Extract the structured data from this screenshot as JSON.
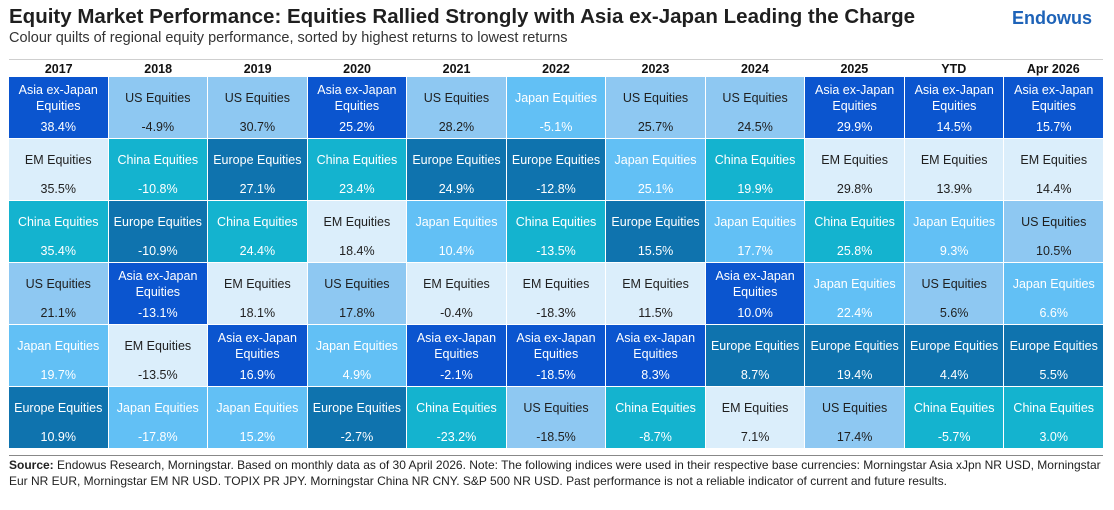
{
  "header": {
    "title": "Equity Market Performance: Equities Rallied Strongly with Asia ex-Japan Leading the Charge",
    "subtitle": "Colour quilts of regional equity performance, sorted by highest returns to lowest returns",
    "brand": "Endowus"
  },
  "colors": {
    "Asia ex-Japan Equities": "#0b55cf",
    "US Equities": "#8ec8f2",
    "EM Equities": "#dbeefb",
    "China Equities": "#14b3cf",
    "Europe Equities": "#0f73ae",
    "Japan Equities": "#62c0f5"
  },
  "text_colors": {
    "Asia ex-Japan Equities": "#ffffff",
    "US Equities": "#1f1f1f",
    "EM Equities": "#1f1f1f",
    "China Equities": "#ffffff",
    "Europe Equities": "#ffffff",
    "Japan Equities": "#ffffff"
  },
  "chart_data": {
    "type": "table",
    "columns": [
      "2017",
      "2018",
      "2019",
      "2020",
      "2021",
      "2022",
      "2023",
      "2024",
      "2025",
      "YTD",
      "Apr 2026"
    ],
    "cells": [
      [
        {
          "name": "Asia ex-Japan Equities",
          "value": "38.4%"
        },
        {
          "name": "EM Equities",
          "value": "35.5%"
        },
        {
          "name": "China Equities",
          "value": "35.4%"
        },
        {
          "name": "US Equities",
          "value": "21.1%"
        },
        {
          "name": "Japan Equities",
          "value": "19.7%"
        },
        {
          "name": "Europe Equities",
          "value": "10.9%"
        }
      ],
      [
        {
          "name": "US Equities",
          "value": "-4.9%"
        },
        {
          "name": "China Equities",
          "value": "-10.8%"
        },
        {
          "name": "Europe Equities",
          "value": "-10.9%"
        },
        {
          "name": "Asia ex-Japan Equities",
          "value": "-13.1%"
        },
        {
          "name": "EM Equities",
          "value": "-13.5%"
        },
        {
          "name": "Japan Equities",
          "value": "-17.8%"
        }
      ],
      [
        {
          "name": "US Equities",
          "value": "30.7%"
        },
        {
          "name": "Europe Equities",
          "value": "27.1%"
        },
        {
          "name": "China Equities",
          "value": "24.4%"
        },
        {
          "name": "EM Equities",
          "value": "18.1%"
        },
        {
          "name": "Asia ex-Japan Equities",
          "value": "16.9%"
        },
        {
          "name": "Japan Equities",
          "value": "15.2%"
        }
      ],
      [
        {
          "name": "Asia ex-Japan Equities",
          "value": "25.2%"
        },
        {
          "name": "China Equities",
          "value": "23.4%"
        },
        {
          "name": "EM Equities",
          "value": "18.4%"
        },
        {
          "name": "US Equities",
          "value": "17.8%"
        },
        {
          "name": "Japan Equities",
          "value": "4.9%"
        },
        {
          "name": "Europe Equities",
          "value": "-2.7%"
        }
      ],
      [
        {
          "name": "US Equities",
          "value": "28.2%"
        },
        {
          "name": "Europe Equities",
          "value": "24.9%"
        },
        {
          "name": "Japan Equities",
          "value": "10.4%"
        },
        {
          "name": "EM Equities",
          "value": "-0.4%"
        },
        {
          "name": "Asia ex-Japan Equities",
          "value": "-2.1%"
        },
        {
          "name": "China Equities",
          "value": "-23.2%"
        }
      ],
      [
        {
          "name": "Japan Equities",
          "value": "-5.1%"
        },
        {
          "name": "Europe Equities",
          "value": "-12.8%"
        },
        {
          "name": "China Equities",
          "value": "-13.5%"
        },
        {
          "name": "EM Equities",
          "value": "-18.3%"
        },
        {
          "name": "Asia ex-Japan Equities",
          "value": "-18.5%"
        },
        {
          "name": "US Equities",
          "value": "-18.5%"
        }
      ],
      [
        {
          "name": "US Equities",
          "value": "25.7%"
        },
        {
          "name": "Japan Equities",
          "value": "25.1%"
        },
        {
          "name": "Europe Equities",
          "value": "15.5%"
        },
        {
          "name": "EM Equities",
          "value": "11.5%"
        },
        {
          "name": "Asia ex-Japan Equities",
          "value": "8.3%"
        },
        {
          "name": "China Equities",
          "value": "-8.7%"
        }
      ],
      [
        {
          "name": "US Equities",
          "value": "24.5%"
        },
        {
          "name": "China Equities",
          "value": "19.9%"
        },
        {
          "name": "Japan Equities",
          "value": "17.7%"
        },
        {
          "name": "Asia ex-Japan Equities",
          "value": "10.0%"
        },
        {
          "name": "Europe Equities",
          "value": "8.7%"
        },
        {
          "name": "EM Equities",
          "value": "7.1%"
        }
      ],
      [
        {
          "name": "Asia ex-Japan Equities",
          "value": "29.9%"
        },
        {
          "name": "EM Equities",
          "value": "29.8%"
        },
        {
          "name": "China Equities",
          "value": "25.8%"
        },
        {
          "name": "Japan Equities",
          "value": "22.4%"
        },
        {
          "name": "Europe Equities",
          "value": "19.4%"
        },
        {
          "name": "US Equities",
          "value": "17.4%"
        }
      ],
      [
        {
          "name": "Asia ex-Japan Equities",
          "value": "14.5%"
        },
        {
          "name": "EM Equities",
          "value": "13.9%"
        },
        {
          "name": "Japan Equities",
          "value": "9.3%"
        },
        {
          "name": "US Equities",
          "value": "5.6%"
        },
        {
          "name": "Europe Equities",
          "value": "4.4%"
        },
        {
          "name": "China Equities",
          "value": "-5.7%"
        }
      ],
      [
        {
          "name": "Asia ex-Japan Equities",
          "value": "15.7%"
        },
        {
          "name": "EM Equities",
          "value": "14.4%"
        },
        {
          "name": "US Equities",
          "value": "10.5%"
        },
        {
          "name": "Japan Equities",
          "value": "6.6%"
        },
        {
          "name": "Europe Equities",
          "value": "5.5%"
        },
        {
          "name": "China Equities",
          "value": "3.0%"
        }
      ]
    ]
  },
  "footer": {
    "source_label": "Source:",
    "source_text": " Endowus Research, Morningstar. Based on monthly data as of 30 April 2026. Note: The following indices were used in their respective base currencies: Morningstar Asia xJpn NR USD, Morningstar Eur NR EUR, Morningstar EM NR USD. TOPIX PR JPY. Morningstar China NR CNY. S&P 500 NR USD. Past performance is not a reliable indicator of current and future results."
  }
}
